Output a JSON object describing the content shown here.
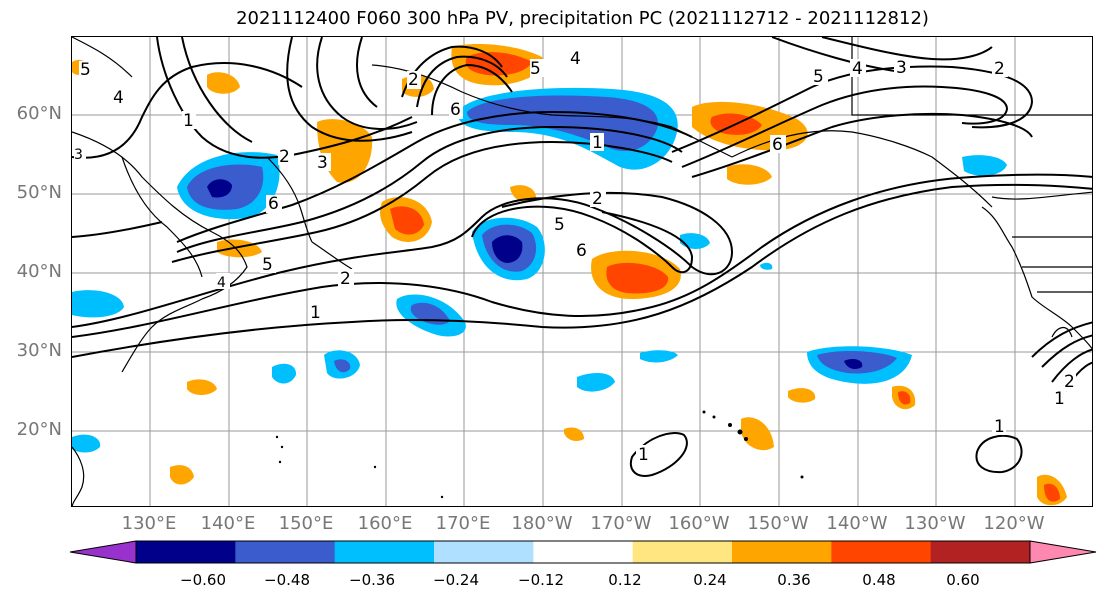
{
  "title": "2021112400 F060 300 hPa PV, precipitation PC (2021112712 - 2021112812)",
  "map": {
    "lat_labels": [
      "60°N",
      "50°N",
      "40°N",
      "30°N",
      "20°N"
    ],
    "lon_labels": [
      "130°E",
      "140°E",
      "150°E",
      "160°E",
      "170°E",
      "180°W",
      "170°W",
      "160°W",
      "150°W",
      "140°W",
      "130°W",
      "120°W"
    ],
    "contour_labels": [
      "1",
      "2",
      "3",
      "4",
      "5",
      "6",
      "1",
      "2",
      "5",
      "6",
      "1",
      "1",
      "4",
      "5",
      "3",
      "2",
      "6",
      "2",
      "1"
    ],
    "colors": {
      "neg_060": "#9932cc",
      "neg_048": "#00008b",
      "neg_036": "#3a5ccc",
      "neg_024": "#00bfff",
      "neg_012": "#b0e0ff",
      "zero": "#ffffff",
      "pos_012": "#ffe680",
      "pos_024": "#ffa500",
      "pos_036": "#ff4500",
      "pos_048": "#b22222",
      "pos_060": "#ff88b0"
    }
  },
  "colorbar": {
    "ticks": [
      "−0.60",
      "−0.48",
      "−0.36",
      "−0.24",
      "−0.12",
      "0.12",
      "0.24",
      "0.36",
      "0.48",
      "0.60"
    ],
    "colors": [
      "#9932cc",
      "#00008b",
      "#3a5ccc",
      "#00bfff",
      "#b0e0ff",
      "#ffffff",
      "#ffe680",
      "#ffa500",
      "#ff4500",
      "#b22222",
      "#ff88b0"
    ]
  }
}
